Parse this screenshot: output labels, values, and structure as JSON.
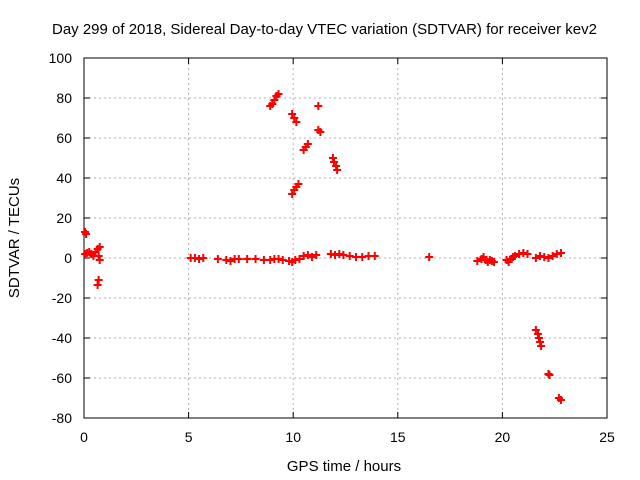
{
  "chart_data": {
    "type": "scatter",
    "title": "Day 299 of 2018, Sidereal Day-to-day VTEC variation (SDTVAR) for receiver kev2",
    "xlabel": "GPS time / hours",
    "ylabel": "SDTVAR / TECUs",
    "xlim": [
      0,
      25
    ],
    "ylim": [
      -80,
      100
    ],
    "xticks": [
      0,
      5,
      10,
      15,
      20,
      25
    ],
    "yticks": [
      -80,
      -60,
      -40,
      -20,
      0,
      20,
      40,
      60,
      80,
      100
    ],
    "xtick_labels": [
      "0",
      "5",
      "10",
      "15",
      "20",
      "25"
    ],
    "ytick_labels": [
      "-80",
      "-60",
      "-40",
      "-20",
      "0",
      "20",
      "40",
      "60",
      "80",
      "100"
    ],
    "grid": true,
    "marker": "plus",
    "color": "#ff0000",
    "series": [
      {
        "name": "SDTVAR",
        "points": [
          [
            0.05,
            13
          ],
          [
            0.1,
            12
          ],
          [
            0.05,
            2
          ],
          [
            0.15,
            2.5
          ],
          [
            0.25,
            3
          ],
          [
            0.35,
            2
          ],
          [
            0.45,
            1
          ],
          [
            0.55,
            3
          ],
          [
            0.65,
            4.5
          ],
          [
            0.75,
            5.5
          ],
          [
            0.7,
            1
          ],
          [
            0.75,
            -1
          ],
          [
            0.7,
            -11
          ],
          [
            0.65,
            -13.5
          ],
          [
            5.1,
            0
          ],
          [
            5.3,
            0
          ],
          [
            5.5,
            -0.5
          ],
          [
            5.7,
            0
          ],
          [
            6.4,
            -0.5
          ],
          [
            6.8,
            -1
          ],
          [
            7.0,
            -1.5
          ],
          [
            7.2,
            -0.5
          ],
          [
            7.4,
            -0.5
          ],
          [
            7.8,
            -0.5
          ],
          [
            8.2,
            -0.5
          ],
          [
            8.6,
            -1
          ],
          [
            8.9,
            -1
          ],
          [
            9.1,
            -0.5
          ],
          [
            9.3,
            -0.5
          ],
          [
            9.5,
            -1
          ],
          [
            9.8,
            -1.5
          ],
          [
            9.95,
            -2
          ],
          [
            10.1,
            -1
          ],
          [
            10.3,
            -0.5
          ],
          [
            10.5,
            1
          ],
          [
            10.7,
            1.5
          ],
          [
            10.9,
            0.5
          ],
          [
            11.1,
            1.5
          ],
          [
            11.8,
            2
          ],
          [
            12.0,
            1.5
          ],
          [
            12.2,
            2
          ],
          [
            12.4,
            1.5
          ],
          [
            12.7,
            1
          ],
          [
            13.0,
            0.5
          ],
          [
            13.3,
            0.5
          ],
          [
            13.6,
            1
          ],
          [
            13.9,
            1
          ],
          [
            16.5,
            0.5
          ],
          [
            18.8,
            -1.5
          ],
          [
            19.0,
            -0.5
          ],
          [
            19.1,
            0.5
          ],
          [
            19.2,
            -1
          ],
          [
            19.3,
            -2
          ],
          [
            19.4,
            -1
          ],
          [
            19.5,
            -1.5
          ],
          [
            19.6,
            -2
          ],
          [
            20.2,
            -1
          ],
          [
            20.3,
            -2
          ],
          [
            20.4,
            -0.5
          ],
          [
            20.5,
            0.5
          ],
          [
            20.6,
            1
          ],
          [
            20.8,
            2
          ],
          [
            21.0,
            2.5
          ],
          [
            21.2,
            2
          ],
          [
            21.6,
            0
          ],
          [
            21.8,
            1
          ],
          [
            22.0,
            0.5
          ],
          [
            22.2,
            0
          ],
          [
            22.4,
            1
          ],
          [
            22.6,
            2
          ],
          [
            22.8,
            2.5
          ],
          [
            8.9,
            76
          ],
          [
            9.0,
            77
          ],
          [
            9.1,
            79
          ],
          [
            9.2,
            81
          ],
          [
            9.3,
            82
          ],
          [
            9.95,
            72
          ],
          [
            10.05,
            70
          ],
          [
            10.15,
            68
          ],
          [
            10.5,
            54
          ],
          [
            10.6,
            55.5
          ],
          [
            10.7,
            57
          ],
          [
            9.95,
            32
          ],
          [
            10.05,
            34
          ],
          [
            10.15,
            35.5
          ],
          [
            10.25,
            37
          ],
          [
            11.2,
            76
          ],
          [
            11.2,
            64
          ],
          [
            11.3,
            63
          ],
          [
            11.9,
            50
          ],
          [
            11.95,
            48
          ],
          [
            12.05,
            46
          ],
          [
            12.1,
            44
          ],
          [
            21.6,
            -36
          ],
          [
            21.7,
            -38
          ],
          [
            21.75,
            -40
          ],
          [
            21.8,
            -42
          ],
          [
            21.85,
            -44
          ],
          [
            22.2,
            -58
          ],
          [
            22.25,
            -58.5
          ],
          [
            22.7,
            -70
          ],
          [
            22.8,
            -71
          ]
        ]
      }
    ]
  }
}
